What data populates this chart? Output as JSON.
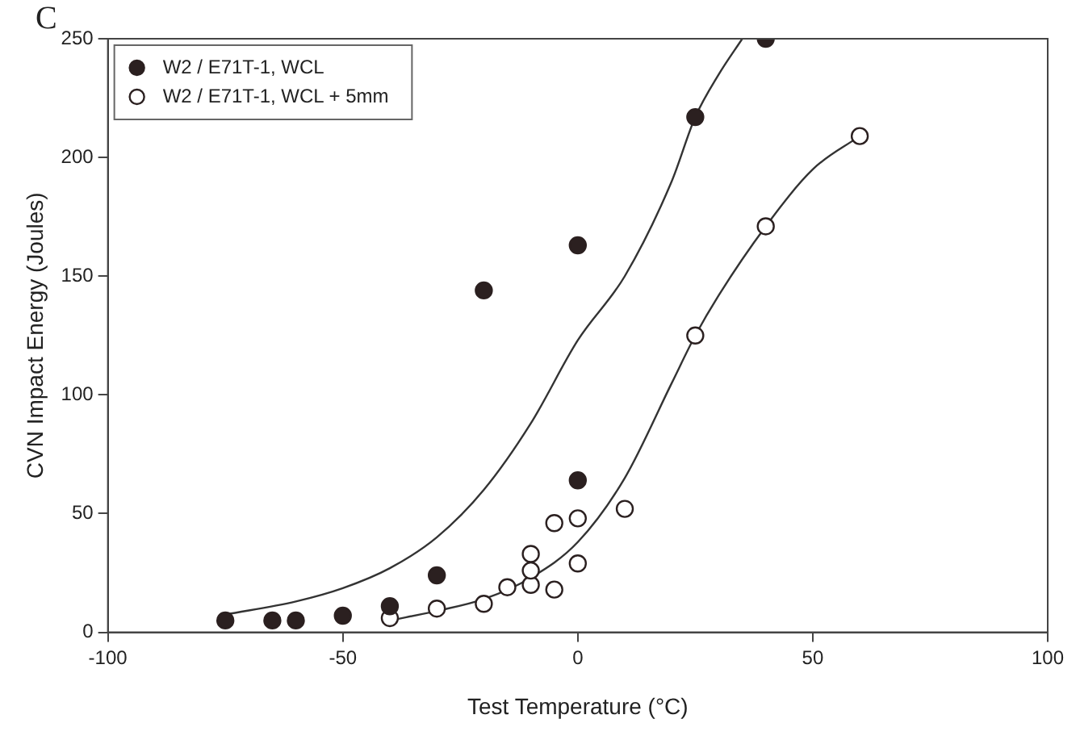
{
  "chart_data": {
    "type": "scatter",
    "xlabel": "Test Temperature (°C)",
    "ylabel": "CVN Impact Energy (Joules)",
    "annotations": [
      "C"
    ],
    "xlim": [
      -100,
      100
    ],
    "xticks": [
      -100,
      -50,
      0,
      50,
      100
    ],
    "ylim": [
      0,
      250
    ],
    "yticks": [
      0,
      50,
      100,
      150,
      200,
      250
    ],
    "grid": false,
    "legend": "top left",
    "marker": "circle",
    "series": [
      {
        "name": "W2 / E71T-1, WCL",
        "color": "#2b2020",
        "x": [
          -75,
          -65,
          -60,
          -50,
          -40,
          -30,
          -20,
          0,
          0,
          25,
          40
        ],
        "values": [
          5,
          5,
          5,
          7,
          11,
          24,
          144,
          163,
          64,
          217,
          250
        ]
      },
      {
        "name": "W2 / E71T-1, WCL + 5mm",
        "color": "#ffffff",
        "x": [
          -40,
          -30,
          -20,
          -15,
          -10,
          -10,
          -10,
          -5,
          -5,
          0,
          0,
          10,
          25,
          40,
          60
        ],
        "values": [
          6,
          10,
          12,
          19,
          20,
          26,
          33,
          18,
          46,
          29,
          48,
          52,
          125,
          171,
          209
        ]
      },
      {
        "type": "line",
        "color": "#333333",
        "marker": "none",
        "x": [
          -75,
          -60,
          -50,
          -40,
          -30,
          -20,
          -10,
          0,
          10,
          20,
          25,
          30,
          35
        ],
        "values": [
          7.5,
          13,
          18.6,
          27,
          40,
          60,
          88,
          123,
          150,
          190,
          217,
          235,
          250
        ]
      },
      {
        "type": "line",
        "color": "#333333",
        "marker": "none",
        "x": [
          -40,
          -30,
          -20,
          -10,
          0,
          10,
          20,
          25,
          30,
          40,
          50,
          60
        ],
        "values": [
          5,
          9,
          14,
          23,
          38,
          65,
          105,
          125,
          142,
          171,
          195,
          209
        ]
      }
    ]
  }
}
